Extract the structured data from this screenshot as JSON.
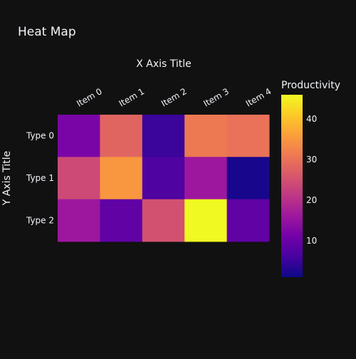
{
  "chart_data": {
    "type": "heatmap",
    "title": "Heat Map",
    "xlabel": "X Axis Title",
    "ylabel": "Y Axis Title",
    "x_categories": [
      "Item 0",
      "Item 1",
      "Item 2",
      "Item 3",
      "Item 4"
    ],
    "y_categories": [
      "Type 0",
      "Type 1",
      "Type 2"
    ],
    "z": [
      [
        12,
        28,
        5,
        31,
        30
      ],
      [
        24,
        35,
        7,
        16,
        2
      ],
      [
        16,
        9,
        25,
        46,
        9
      ]
    ],
    "colorbar": {
      "title": "Productivity",
      "tickvals": [
        10,
        20,
        30,
        40
      ],
      "range": [
        1,
        46
      ]
    },
    "colorscale": "Plasma"
  }
}
